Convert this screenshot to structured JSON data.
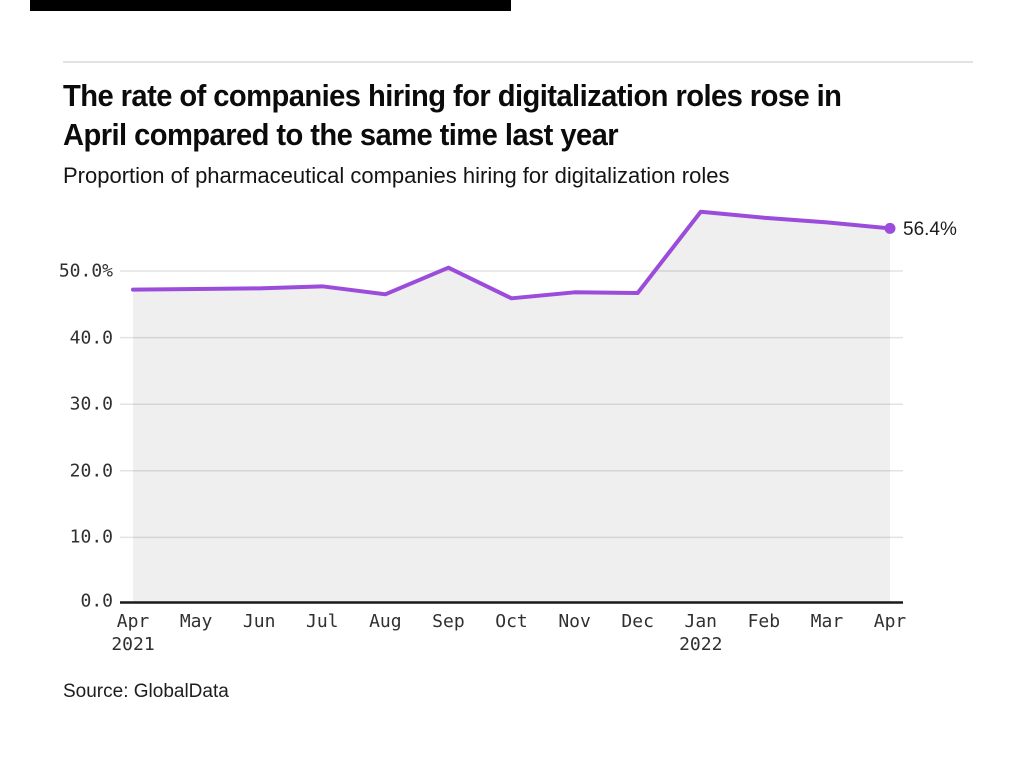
{
  "header": {
    "title_line1": "The rate of companies hiring for digitalization roles rose in",
    "title_line2": "April compared to the same time last year",
    "subtitle": "Proportion of pharmaceutical companies hiring for digitalization roles"
  },
  "chart_data": {
    "type": "area",
    "title": "The rate of companies hiring for digitalization roles rose in April compared to the same time last year",
    "subtitle": "Proportion of pharmaceutical companies hiring for digitalization roles",
    "x": [
      "Apr",
      "May",
      "Jun",
      "Jul",
      "Aug",
      "Sep",
      "Oct",
      "Nov",
      "Dec",
      "Jan",
      "Feb",
      "Mar",
      "Apr"
    ],
    "year_labels": [
      {
        "index": 0,
        "text": "2021"
      },
      {
        "index": 9,
        "text": "2022"
      }
    ],
    "series": [
      {
        "name": "Proportion of pharmaceutical companies hiring for digitalization roles (%)",
        "values": [
          47.2,
          47.3,
          47.4,
          47.7,
          46.5,
          50.5,
          45.9,
          46.8,
          46.7,
          58.9,
          58.0,
          57.3,
          56.4
        ]
      }
    ],
    "end_label": "56.4%",
    "yticks": [
      {
        "value": 50,
        "label": "50.0%"
      },
      {
        "value": 40,
        "label": "40.0"
      },
      {
        "value": 30,
        "label": "30.0"
      },
      {
        "value": 20,
        "label": "20.0"
      },
      {
        "value": 10,
        "label": "10.0"
      },
      {
        "value": 0,
        "label": "0.0"
      }
    ],
    "ylim": [
      0,
      61
    ],
    "grid": true,
    "legend": "none",
    "xlabel": "",
    "ylabel": "",
    "line_color": "#9b4cdb",
    "area_color": "rgba(0,0,0,0.062)",
    "grid_color": "#e3e3e3",
    "axis_color": "#1a1a1a"
  },
  "footer": {
    "source": "Source: GlobalData"
  }
}
